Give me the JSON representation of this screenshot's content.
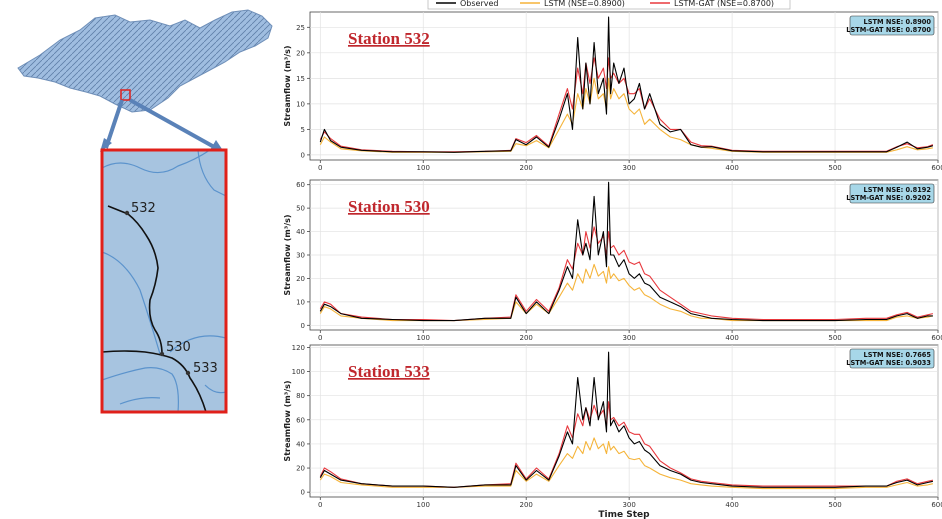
{
  "colors": {
    "observed": "#000000",
    "lstm": "#f5b43a",
    "lstm_gat": "#e8383d",
    "badge_bg": "#a7d7e8",
    "map_fill": "#a7c4e0",
    "inset_border": "#e0201a",
    "river": "#5b93cc"
  },
  "map": {
    "stations": [
      {
        "label": "532"
      },
      {
        "label": "530"
      },
      {
        "label": "533"
      }
    ]
  },
  "legend": {
    "observed": "Observed",
    "lstm": "LSTM (NSE=0.8900)",
    "lstm_gat": "LSTM-GAT (NSE=0.8700)"
  },
  "chart_data": [
    {
      "type": "line",
      "title": "Station 532",
      "xlabel": "",
      "ylabel": "Streamflow (m³/s)",
      "ylim": [
        -1,
        28
      ],
      "yticks": [
        0,
        5,
        10,
        15,
        20,
        25
      ],
      "xlim": [
        -10,
        600
      ],
      "xticks": [
        0,
        100,
        200,
        300,
        400,
        500,
        600
      ],
      "grid": true,
      "annotation": [
        "LSTM NSE: 0.8900",
        "LSTM-GAT NSE: 0.8700"
      ],
      "series": [
        {
          "name": "Observed",
          "x": [
            0,
            4,
            10,
            20,
            40,
            70,
            100,
            130,
            160,
            185,
            190,
            200,
            210,
            222,
            232,
            240,
            245,
            250,
            255,
            258,
            262,
            266,
            270,
            275,
            278,
            280,
            282,
            285,
            290,
            295,
            300,
            305,
            310,
            315,
            320,
            330,
            340,
            350,
            360,
            370,
            380,
            400,
            430,
            460,
            500,
            530,
            550,
            560,
            570,
            580,
            590,
            595
          ],
          "values": [
            2.5,
            5.0,
            2.8,
            1.5,
            0.9,
            0.6,
            0.6,
            0.5,
            0.7,
            0.8,
            3.0,
            2.0,
            3.5,
            1.5,
            7.0,
            12.0,
            5.0,
            23.0,
            9.0,
            18.0,
            10.0,
            22.0,
            12.0,
            15.0,
            8.0,
            27.0,
            12.0,
            18.0,
            14.0,
            17.0,
            10.0,
            11.0,
            14.0,
            9.0,
            12.0,
            6.0,
            4.5,
            5.0,
            2.0,
            1.5,
            1.6,
            0.8,
            0.6,
            0.6,
            0.6,
            0.6,
            0.6,
            1.5,
            2.5,
            1.2,
            1.5,
            1.8
          ]
        },
        {
          "name": "LSTM (NSE=0.8900)",
          "x": [
            0,
            4,
            10,
            20,
            40,
            70,
            100,
            130,
            160,
            185,
            190,
            200,
            210,
            222,
            232,
            240,
            245,
            250,
            255,
            258,
            262,
            266,
            270,
            275,
            278,
            280,
            282,
            285,
            290,
            295,
            300,
            305,
            310,
            315,
            320,
            330,
            340,
            350,
            360,
            370,
            380,
            400,
            430,
            460,
            500,
            530,
            550,
            560,
            570,
            580,
            590,
            595
          ],
          "values": [
            2.0,
            3.5,
            2.5,
            1.2,
            0.8,
            0.5,
            0.5,
            0.5,
            0.6,
            0.7,
            2.2,
            1.8,
            2.8,
            1.4,
            5.0,
            8.0,
            6.0,
            12.0,
            9.0,
            13.0,
            10.0,
            15.0,
            11.0,
            12.0,
            9.0,
            15.0,
            11.0,
            13.0,
            11.0,
            12.0,
            9.0,
            8.0,
            9.0,
            6.0,
            7.0,
            5.0,
            3.5,
            3.0,
            2.0,
            1.5,
            1.3,
            0.7,
            0.5,
            0.5,
            0.5,
            0.5,
            0.5,
            1.0,
            1.6,
            1.0,
            1.2,
            1.4
          ]
        },
        {
          "name": "LSTM-GAT (NSE=0.8700)",
          "x": [
            0,
            4,
            10,
            20,
            40,
            70,
            100,
            130,
            160,
            185,
            190,
            200,
            210,
            222,
            232,
            240,
            245,
            250,
            255,
            258,
            262,
            266,
            270,
            275,
            278,
            280,
            282,
            285,
            290,
            295,
            300,
            305,
            310,
            315,
            320,
            330,
            340,
            350,
            360,
            370,
            380,
            400,
            430,
            460,
            500,
            530,
            550,
            560,
            570,
            580,
            590,
            595
          ],
          "values": [
            3.0,
            4.5,
            3.2,
            1.7,
            1.0,
            0.7,
            0.6,
            0.6,
            0.7,
            0.9,
            3.2,
            2.4,
            3.8,
            1.7,
            8.0,
            13.0,
            9.0,
            17.0,
            12.0,
            18.0,
            14.0,
            19.0,
            15.0,
            17.0,
            13.0,
            19.0,
            15.0,
            16.0,
            14.0,
            15.0,
            12.0,
            12.0,
            13.0,
            9.0,
            11.0,
            7.0,
            5.0,
            5.0,
            2.5,
            1.8,
            1.7,
            0.9,
            0.7,
            0.7,
            0.7,
            0.7,
            0.7,
            1.6,
            2.2,
            1.4,
            1.6,
            2.0
          ]
        }
      ]
    },
    {
      "type": "line",
      "title": "Station 530",
      "xlabel": "",
      "ylabel": "Streamflow (m³/s)",
      "ylim": [
        -2,
        62
      ],
      "yticks": [
        0,
        10,
        20,
        30,
        40,
        50,
        60
      ],
      "xlim": [
        -10,
        600
      ],
      "xticks": [
        0,
        100,
        200,
        300,
        400,
        500,
        600
      ],
      "grid": true,
      "annotation": [
        "LSTM NSE: 0.8192",
        "LSTM-GAT NSE: 0.9202"
      ],
      "series": [
        {
          "name": "Observed",
          "x": [
            0,
            4,
            10,
            20,
            40,
            70,
            100,
            130,
            160,
            185,
            190,
            200,
            210,
            222,
            232,
            240,
            245,
            250,
            255,
            258,
            262,
            266,
            270,
            275,
            278,
            280,
            282,
            285,
            290,
            295,
            300,
            305,
            310,
            315,
            320,
            330,
            340,
            350,
            360,
            370,
            380,
            400,
            430,
            460,
            500,
            530,
            550,
            560,
            570,
            580,
            590,
            595
          ],
          "values": [
            6,
            9,
            8,
            5,
            3,
            2.5,
            2,
            2,
            3,
            3,
            12,
            5,
            10,
            5,
            15,
            25,
            20,
            45,
            30,
            35,
            28,
            55,
            30,
            40,
            25,
            61,
            30,
            30,
            25,
            28,
            22,
            20,
            22,
            18,
            17,
            12,
            10,
            8,
            5,
            4,
            3,
            2.5,
            2,
            2,
            2,
            2.5,
            2.5,
            4,
            5,
            3,
            4,
            4
          ]
        },
        {
          "name": "LSTM (NSE=0.8192)",
          "x": [
            0,
            4,
            10,
            20,
            40,
            70,
            100,
            130,
            160,
            185,
            190,
            200,
            210,
            222,
            232,
            240,
            245,
            250,
            255,
            258,
            262,
            266,
            270,
            275,
            278,
            280,
            282,
            285,
            290,
            295,
            300,
            305,
            310,
            315,
            320,
            330,
            340,
            350,
            360,
            370,
            380,
            400,
            430,
            460,
            500,
            530,
            550,
            560,
            570,
            580,
            590,
            595
          ],
          "values": [
            5,
            8,
            7,
            4,
            3,
            2,
            2,
            2,
            2.5,
            3,
            10,
            5,
            9,
            5,
            12,
            18,
            15,
            22,
            18,
            24,
            20,
            26,
            21,
            23,
            18,
            25,
            20,
            22,
            19,
            20,
            17,
            15,
            16,
            13,
            12,
            9,
            7,
            6,
            4,
            3,
            3,
            2,
            2,
            2,
            2,
            2,
            2,
            3.5,
            4,
            3,
            3.5,
            4
          ]
        },
        {
          "name": "LSTM-GAT (NSE=0.9202)",
          "x": [
            0,
            4,
            10,
            20,
            40,
            70,
            100,
            130,
            160,
            185,
            190,
            200,
            210,
            222,
            232,
            240,
            245,
            250,
            255,
            258,
            262,
            266,
            270,
            275,
            278,
            280,
            282,
            285,
            290,
            295,
            300,
            305,
            310,
            315,
            320,
            330,
            340,
            350,
            360,
            370,
            380,
            400,
            430,
            460,
            500,
            530,
            550,
            560,
            570,
            580,
            590,
            595
          ],
          "values": [
            7,
            10,
            9,
            5,
            3.5,
            2.5,
            2.5,
            2,
            3,
            3.5,
            13,
            6,
            11,
            6,
            16,
            28,
            24,
            35,
            30,
            40,
            33,
            42,
            35,
            38,
            30,
            40,
            33,
            34,
            30,
            32,
            27,
            26,
            27,
            22,
            21,
            15,
            12,
            9,
            6,
            5,
            4,
            3,
            2.5,
            2.5,
            2.5,
            3,
            3,
            4.5,
            5.5,
            3.5,
            4.5,
            5
          ]
        }
      ]
    },
    {
      "type": "line",
      "title": "Station 533",
      "xlabel": "Time Step",
      "ylabel": "Streamflow (m³/s)",
      "ylim": [
        -4,
        122
      ],
      "yticks": [
        0,
        20,
        40,
        60,
        80,
        100,
        120
      ],
      "xlim": [
        -10,
        600
      ],
      "xticks": [
        0,
        100,
        200,
        300,
        400,
        500,
        600
      ],
      "grid": true,
      "annotation": [
        "LSTM NSE: 0.7665",
        "LSTM-GAT NSE: 0.9033"
      ],
      "series": [
        {
          "name": "Observed",
          "x": [
            0,
            4,
            10,
            20,
            40,
            70,
            100,
            130,
            160,
            185,
            190,
            200,
            210,
            222,
            232,
            240,
            245,
            250,
            255,
            258,
            262,
            266,
            270,
            275,
            278,
            280,
            282,
            285,
            290,
            295,
            300,
            305,
            310,
            315,
            320,
            330,
            340,
            350,
            360,
            370,
            380,
            400,
            430,
            460,
            500,
            530,
            550,
            560,
            570,
            580,
            590,
            595
          ],
          "values": [
            12,
            18,
            15,
            10,
            7,
            5,
            5,
            4,
            6,
            6,
            22,
            10,
            18,
            10,
            30,
            50,
            40,
            95,
            60,
            70,
            55,
            95,
            60,
            75,
            50,
            116,
            55,
            60,
            50,
            55,
            45,
            40,
            42,
            35,
            32,
            22,
            18,
            15,
            10,
            8,
            7,
            5,
            4,
            4,
            4,
            5,
            5,
            8,
            10,
            6,
            8,
            9
          ]
        },
        {
          "name": "LSTM (NSE=0.7665)",
          "x": [
            0,
            4,
            10,
            20,
            40,
            70,
            100,
            130,
            160,
            185,
            190,
            200,
            210,
            222,
            232,
            240,
            245,
            250,
            255,
            258,
            262,
            266,
            270,
            275,
            278,
            280,
            282,
            285,
            290,
            295,
            300,
            305,
            310,
            315,
            320,
            330,
            340,
            350,
            360,
            370,
            380,
            400,
            430,
            460,
            500,
            530,
            550,
            560,
            570,
            580,
            590,
            595
          ],
          "values": [
            10,
            15,
            13,
            8,
            6,
            4,
            4,
            4,
            5,
            5,
            18,
            9,
            15,
            9,
            22,
            32,
            28,
            38,
            32,
            42,
            35,
            45,
            36,
            40,
            32,
            42,
            35,
            38,
            32,
            34,
            28,
            27,
            28,
            22,
            20,
            15,
            12,
            10,
            7,
            6,
            5,
            4,
            3,
            3,
            3,
            4,
            4,
            6,
            8,
            5,
            6,
            7
          ]
        },
        {
          "name": "LSTM-GAT (NSE=0.9033)",
          "x": [
            0,
            4,
            10,
            20,
            40,
            70,
            100,
            130,
            160,
            185,
            190,
            200,
            210,
            222,
            232,
            240,
            245,
            250,
            255,
            258,
            262,
            266,
            270,
            275,
            278,
            280,
            282,
            285,
            290,
            295,
            300,
            305,
            310,
            315,
            320,
            330,
            340,
            350,
            360,
            370,
            380,
            400,
            430,
            460,
            500,
            530,
            550,
            560,
            570,
            580,
            590,
            595
          ],
          "values": [
            13,
            20,
            17,
            11,
            7,
            5,
            5,
            4,
            6,
            7,
            24,
            11,
            20,
            11,
            32,
            55,
            45,
            65,
            55,
            70,
            60,
            72,
            62,
            68,
            55,
            75,
            60,
            62,
            55,
            58,
            50,
            48,
            48,
            40,
            38,
            26,
            20,
            16,
            11,
            9,
            8,
            6,
            5,
            5,
            5,
            5,
            5,
            9,
            11,
            7,
            9,
            10
          ]
        }
      ]
    }
  ]
}
